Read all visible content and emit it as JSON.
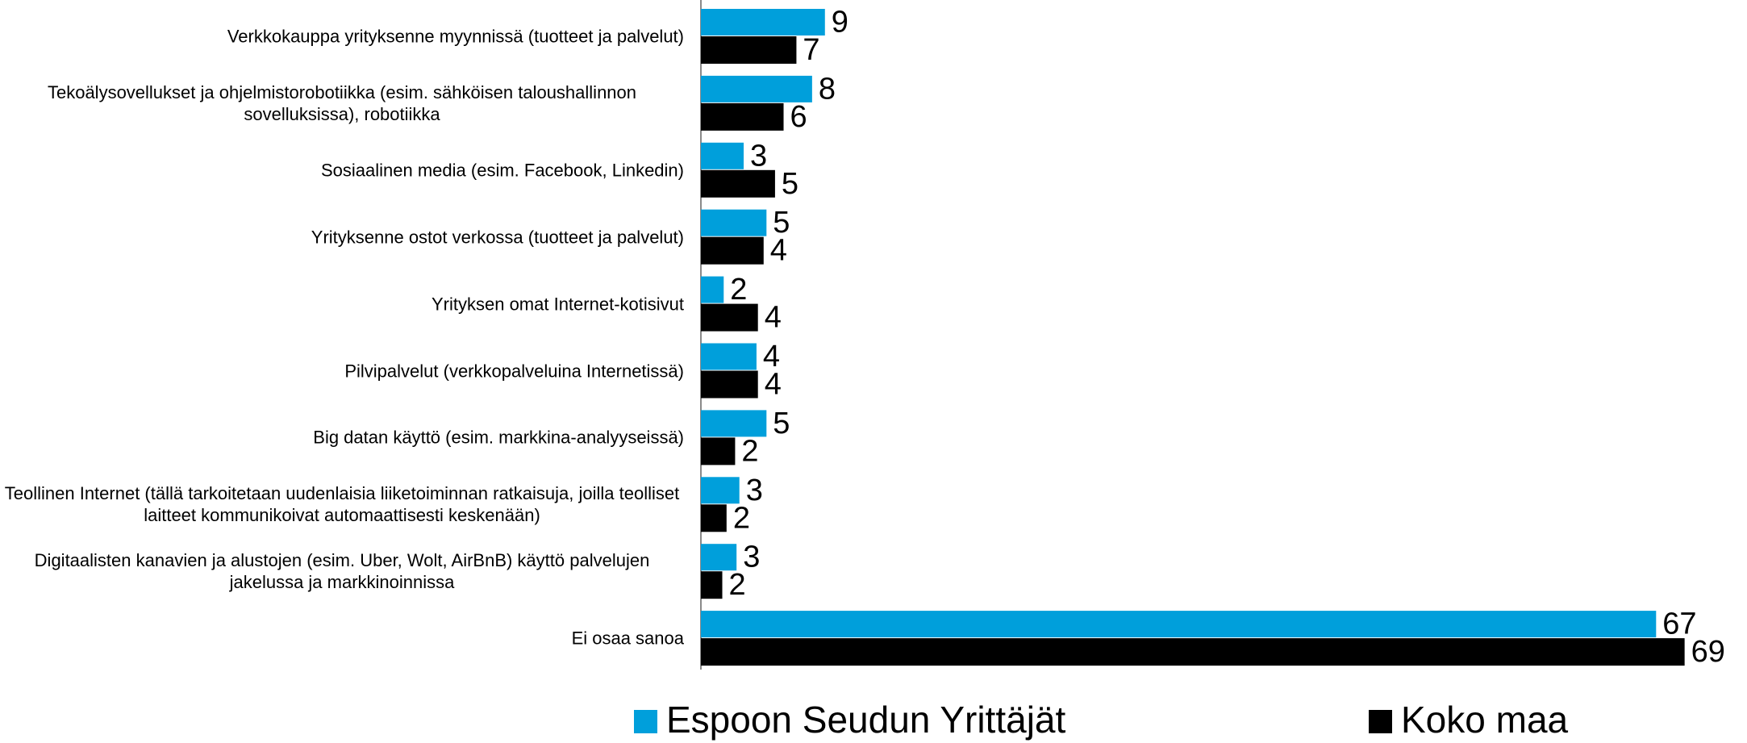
{
  "chart_data": {
    "type": "hbar",
    "categories": [
      "Verkkokauppa yrityksenne myynnissä (tuotteet ja palvelut)",
      "Tekoälysovellukset ja ohjelmistorobotiikka (esim. sähköisen taloushallinnon sovelluksissa), robotiikka",
      "Sosiaalinen media (esim. Facebook, Linkedin)",
      "Yrityksenne ostot verkossa (tuotteet ja palvelut)",
      "Yrityksen omat Internet-kotisivut",
      "Pilvipalvelut  (verkkopalveluina Internetissä)",
      "Big datan käyttö (esim. markkina-analyyseissä)",
      "Teollinen Internet (tällä tarkoitetaan uudenlaisia liiketoiminnan ratkaisuja, joilla teolliset laitteet kommunikoivat automaattisesti keskenään)",
      "Digitaalisten kanavien ja alustojen (esim. Uber, Wolt, AirBnB) käyttö palvelujen jakelussa ja markkinoinnissa",
      "Ei osaa sanoa"
    ],
    "series": [
      {
        "name": "Espoon Seudun Yrittäjät",
        "color": "#009fdb",
        "values": [
          8.7,
          7.8,
          3.0,
          4.6,
          1.6,
          3.9,
          4.6,
          2.7,
          2.5,
          67
        ],
        "value_labels": [
          "9",
          "8",
          "3",
          "5",
          "2",
          "4",
          "5",
          "3",
          "3",
          "67"
        ]
      },
      {
        "name": "Koko maa",
        "color": "#000000",
        "values": [
          6.7,
          5.8,
          5.2,
          4.4,
          4.0,
          4.0,
          2.4,
          1.8,
          1.5,
          69
        ],
        "value_labels": [
          "7",
          "6",
          "5",
          "4",
          "4",
          "4",
          "2",
          "2",
          "2",
          "69"
        ]
      }
    ],
    "xlim": [
      0,
      71
    ]
  }
}
